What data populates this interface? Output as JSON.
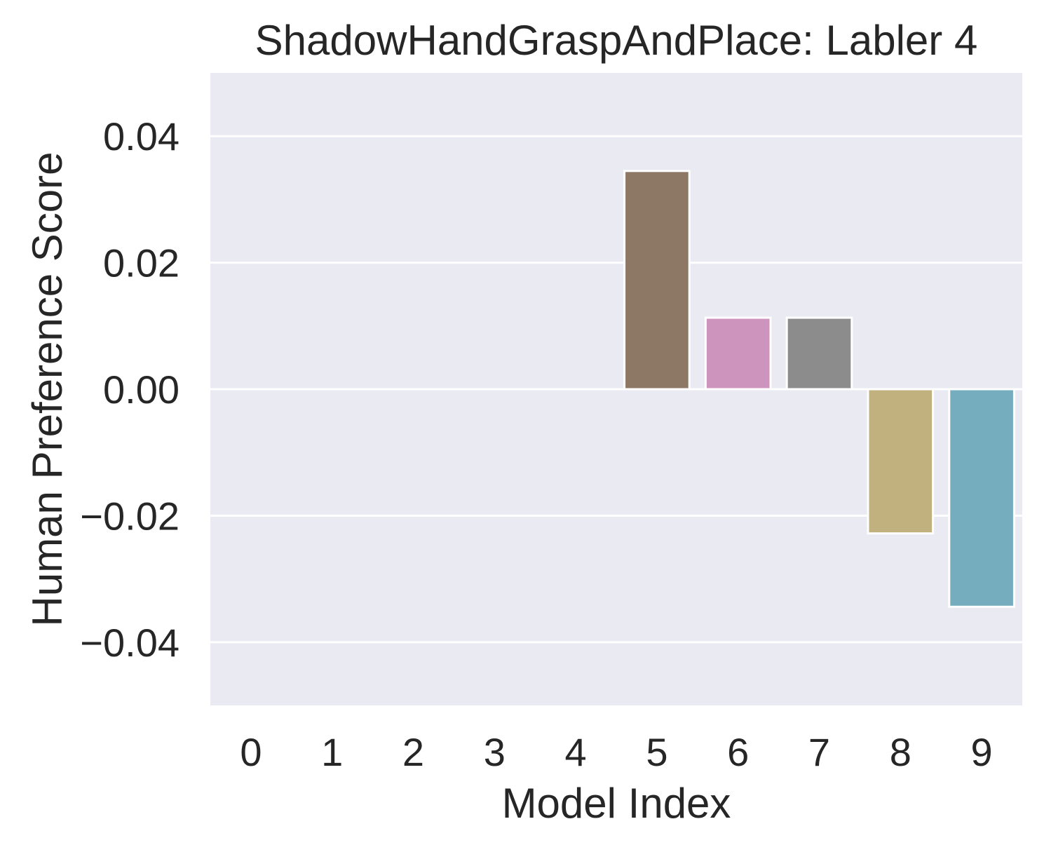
{
  "chart_data": {
    "type": "bar",
    "title": "ShadowHandGraspAndPlace: Labler 4",
    "xlabel": "Model Index",
    "ylabel": "Human Preference Score",
    "categories": [
      "0",
      "1",
      "2",
      "3",
      "4",
      "5",
      "6",
      "7",
      "8",
      "9"
    ],
    "values": [
      0,
      0,
      0,
      0,
      0,
      0.0345,
      0.0113,
      0.0113,
      -0.0228,
      -0.0344
    ],
    "colors": [
      "#4c72b0",
      "#dd8452",
      "#55a868",
      "#c44e52",
      "#8172b3",
      "#8c7864",
      "#cd94bd",
      "#8c8c8c",
      "#c0b17f",
      "#75adbf"
    ],
    "yticks": [
      -0.04,
      -0.02,
      0.0,
      0.02,
      0.04
    ],
    "ytick_labels": [
      "−0.04",
      "−0.02",
      "0.00",
      "0.02",
      "0.04"
    ],
    "ylim": [
      -0.05,
      0.05
    ],
    "grid": true,
    "background": "#eaeaf2",
    "grid_color": "#ffffff"
  }
}
